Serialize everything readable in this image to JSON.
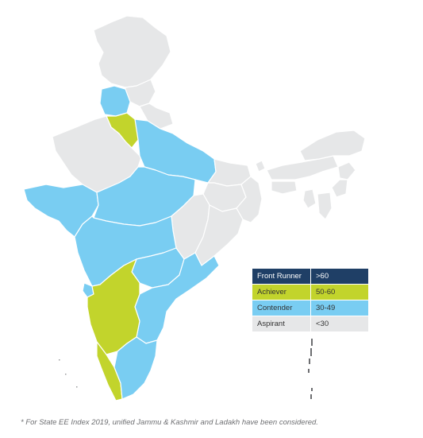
{
  "colors": {
    "front_runner": "#1f3f66",
    "achiever": "#c2d42c",
    "contender": "#79cdf2",
    "aspirant": "#e6e7e8",
    "border": "#ffffff",
    "footnote_text": "#6d6e71"
  },
  "legend": [
    {
      "category": "Front Runner",
      "range": ">60",
      "fill": "#1f3f66",
      "text_color": "#ffffff"
    },
    {
      "category": "Achiever",
      "range": "50-60",
      "fill": "#c2d42c",
      "text_color": "#333333"
    },
    {
      "category": "Contender",
      "range": "30-49",
      "fill": "#79cdf2",
      "text_color": "#333333"
    },
    {
      "category": "Aspirant",
      "range": "<30",
      "fill": "#e6e7e8",
      "text_color": "#333333"
    }
  ],
  "footnote": "* For State EE Index 2019, unified Jammu & Kashmir and Ladakh have been considered."
}
